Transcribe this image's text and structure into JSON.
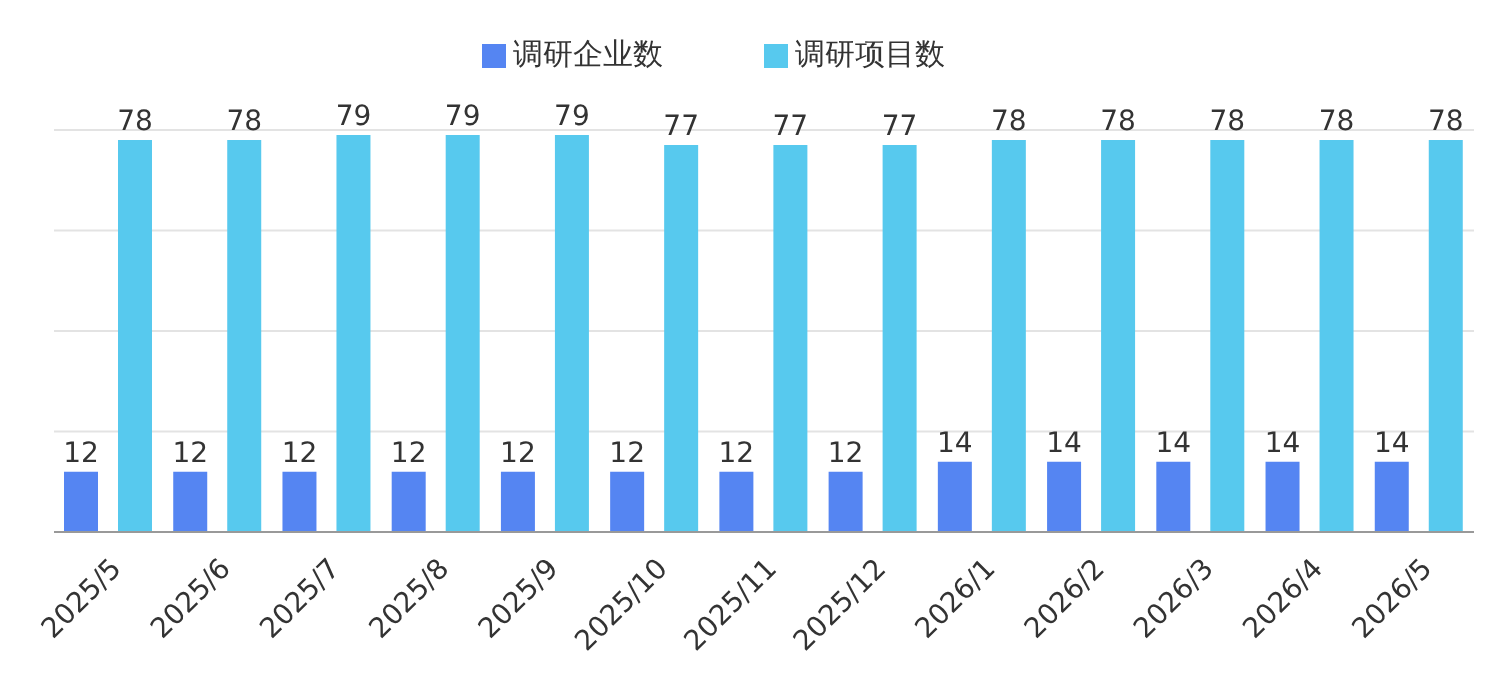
{
  "chart_data": {
    "type": "bar",
    "categories": [
      "2025/5",
      "2025/6",
      "2025/7",
      "2025/8",
      "2025/9",
      "2025/10",
      "2025/11",
      "2025/12",
      "2026/1",
      "2026/2",
      "2026/3",
      "2026/4",
      "2026/5"
    ],
    "series": [
      {
        "name": "调研企业数",
        "color": "#5585f2",
        "values": [
          12,
          12,
          12,
          12,
          12,
          12,
          12,
          12,
          14,
          14,
          14,
          14,
          14
        ]
      },
      {
        "name": "调研项目数",
        "color": "#57c9ee",
        "values": [
          78,
          78,
          79,
          79,
          79,
          77,
          77,
          77,
          78,
          78,
          78,
          78,
          78
        ]
      }
    ],
    "ylim": [
      0,
      80
    ],
    "tick_labels": "x",
    "grid": "y",
    "legend": "top",
    "data_labels": true
  }
}
